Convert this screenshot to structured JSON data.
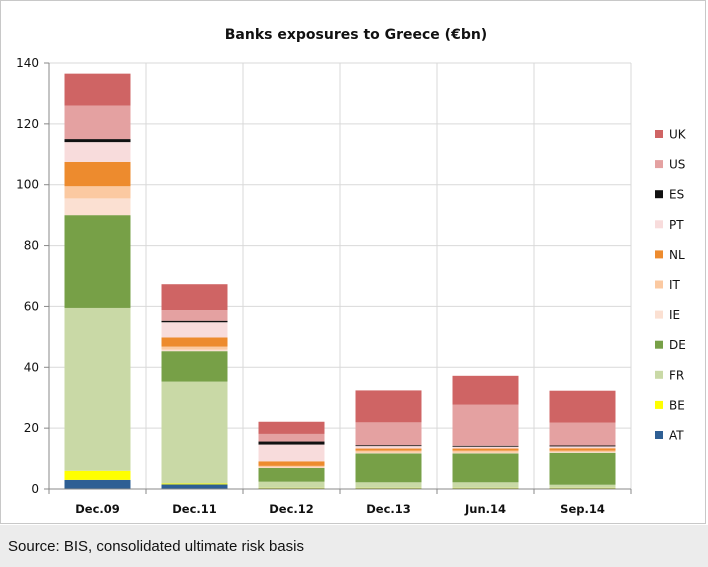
{
  "chart_data": {
    "type": "bar",
    "stacked": true,
    "title": "Banks exposures to Greece  (€bn)",
    "xlabel": "",
    "ylabel": "",
    "ylim": [
      0,
      140
    ],
    "yticks": [
      0,
      20,
      40,
      60,
      80,
      100,
      120,
      140
    ],
    "grid": true,
    "legend_position": "right",
    "categories": [
      "Dec.09",
      "Dec.11",
      "Dec.12",
      "Dec.13",
      "Jun.14",
      "Sep.14"
    ],
    "series": [
      {
        "name": "AT",
        "color": "#2e5f94",
        "values": [
          3,
          1.5,
          0.3,
          0.3,
          0.3,
          0.3
        ]
      },
      {
        "name": "BE",
        "color": "#ffff00",
        "values": [
          3,
          0.3,
          0.1,
          0.1,
          0.1,
          0.1
        ]
      },
      {
        "name": "FR",
        "color": "#c9d9a6",
        "values": [
          53.5,
          33.5,
          2,
          1.8,
          1.8,
          1
        ]
      },
      {
        "name": "DE",
        "color": "#77a047",
        "values": [
          30.5,
          10,
          4.5,
          9.5,
          9.5,
          10.5
        ]
      },
      {
        "name": "IE",
        "color": "#fbe0d2",
        "values": [
          5.5,
          0.5,
          0.2,
          0.2,
          0.2,
          0.2
        ]
      },
      {
        "name": "IT",
        "color": "#fbc9a1",
        "values": [
          4,
          1,
          0.5,
          0.7,
          0.7,
          0.5
        ]
      },
      {
        "name": "NL",
        "color": "#ed8b2e",
        "values": [
          8,
          3,
          1.5,
          0.7,
          0.7,
          0.8
        ]
      },
      {
        "name": "PT",
        "color": "#f8dcdc",
        "values": [
          6.5,
          5,
          5.5,
          0.8,
          0.6,
          0.6
        ]
      },
      {
        "name": "ES",
        "color": "#111111",
        "values": [
          1,
          0.5,
          1,
          0.3,
          0.3,
          0.3
        ]
      },
      {
        "name": "US",
        "color": "#e4a1a1",
        "values": [
          11,
          3.5,
          2.5,
          7.5,
          13.5,
          7.5
        ]
      },
      {
        "name": "UK",
        "color": "#cf6464",
        "values": [
          10.5,
          8.5,
          4,
          10.5,
          9.5,
          10.5
        ]
      }
    ]
  },
  "source_note": "Source: BIS, consolidated ultimate risk basis"
}
